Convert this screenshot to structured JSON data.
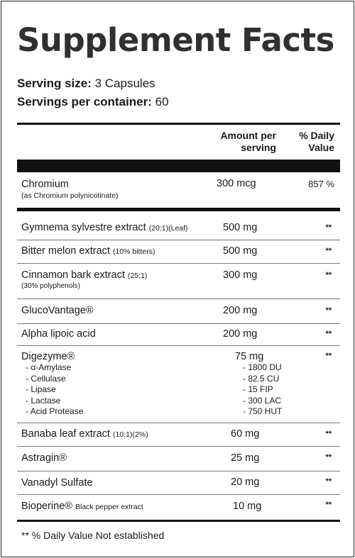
{
  "title": "Supplement Facts",
  "serving_size": {
    "label": "Serving size:",
    "value": "3 Capsules"
  },
  "servings_per_container": {
    "label": "Servings per container:",
    "value": "60"
  },
  "header": {
    "amount_line1": "Amount per",
    "amount_line2": "serving",
    "dv_line1": "%  Daily",
    "dv_line2": "Value"
  },
  "chromium": {
    "name": "Chromium",
    "sub": "(as Chromium polynicotinate)",
    "amount": "300 mcg",
    "dv": "857 %"
  },
  "ingredients": [
    {
      "name": "Gymnema sylvestre extract",
      "note": "(20:1)(Leaf)",
      "sub": "",
      "amount": "500 mg",
      "dv": "**"
    },
    {
      "name": "Bitter melon extract",
      "note": "(10% bitters)",
      "sub": "",
      "amount": "500 mg",
      "dv": "**"
    },
    {
      "name": "Cinnamon bark extract",
      "note": "(25:1)",
      "sub": "(30% polyphenols)",
      "amount": "300 mg",
      "dv": "**"
    },
    {
      "name": "GlucoVantage®",
      "note": "",
      "sub": "",
      "amount": "200 mg",
      "dv": "**"
    },
    {
      "name": "Alpha lipoic acid",
      "note": "",
      "sub": "",
      "amount": "200 mg",
      "dv": "**"
    },
    {
      "name": "Digezyme®",
      "note": "",
      "sub": "",
      "amount": "75 mg",
      "dv": "**"
    },
    {
      "name": "Banaba leaf extract",
      "note": "(10:1)(2%)",
      "sub": "",
      "amount": "60 mg",
      "dv": "**"
    },
    {
      "name": "Astragin®",
      "note": "",
      "sub": "",
      "amount": "25 mg",
      "dv": "**"
    },
    {
      "name": "Vanadyl Sulfate",
      "note": "",
      "sub": "",
      "amount": "20 mg",
      "dv": "**"
    },
    {
      "name": "Bioperine®",
      "note": "Black pepper extract",
      "sub": "",
      "amount": "10 mg",
      "dv": "**"
    }
  ],
  "digezyme_components": [
    {
      "name": "- α-Amylase",
      "amount": "- 1800 DU"
    },
    {
      "name": "- Cellulase",
      "amount": "- 82.5 CU"
    },
    {
      "name": "- Lipase",
      "amount": "- 15 FIP"
    },
    {
      "name": "- Lactase",
      "amount": "- 300 LAC"
    },
    {
      "name": "- Acid Protease",
      "amount": "- 750 HUT"
    }
  ],
  "footer": "** % Daily Value Not established"
}
